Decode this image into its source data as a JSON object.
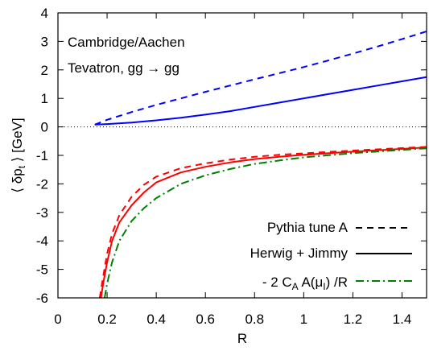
{
  "chart_data": {
    "type": "line",
    "xlabel": "R",
    "ylabel": "⟨ δp",
    "ylabel_sub": "t",
    "ylabel_tail": " ⟩ [GeV]",
    "xlim": [
      0,
      1.5
    ],
    "ylim": [
      -6,
      4
    ],
    "xticks": [
      "0",
      "0.2",
      "0.4",
      "0.6",
      "0.8",
      "1",
      "1.2",
      "1.4"
    ],
    "yticks": [
      "4",
      "3",
      "2",
      "1",
      "0",
      "-1",
      "-2",
      "-3",
      "-4",
      "-5",
      "-6"
    ],
    "annotations": [
      "Cambridge/Aachen",
      "Tevatron, gg → gg"
    ],
    "legend": {
      "position": "bottom-right",
      "entries": [
        {
          "text": "Pythia tune A",
          "style": "dashed",
          "color": "#000000"
        },
        {
          "text": "Herwig + Jimmy",
          "style": "solid",
          "color": "#000000"
        },
        {
          "text_pre": "- 2 C",
          "sub1": "A",
          "text_mid": " A(μ",
          "sub2": "I",
          "text_post": ") /R",
          "style": "dashdot",
          "color": "#008000"
        }
      ]
    },
    "zero_line": true,
    "series": [
      {
        "id": "pythia-upper",
        "color": "#0000ff",
        "style": "dashed",
        "x": [
          0.15,
          0.2,
          0.3,
          0.4,
          0.5,
          0.6,
          0.7,
          0.8,
          0.9,
          1.0,
          1.1,
          1.2,
          1.3,
          1.4,
          1.5
        ],
        "y": [
          0.08,
          0.25,
          0.52,
          0.77,
          1.0,
          1.23,
          1.45,
          1.67,
          1.88,
          2.1,
          2.33,
          2.57,
          2.82,
          3.08,
          3.35
        ]
      },
      {
        "id": "herwig-upper",
        "color": "#0000ff",
        "style": "solid",
        "x": [
          0.15,
          0.2,
          0.3,
          0.4,
          0.5,
          0.6,
          0.7,
          0.8,
          0.9,
          1.0,
          1.1,
          1.2,
          1.3,
          1.4,
          1.5
        ],
        "y": [
          0.08,
          0.1,
          0.15,
          0.23,
          0.32,
          0.43,
          0.55,
          0.7,
          0.85,
          1.0,
          1.15,
          1.3,
          1.45,
          1.6,
          1.75
        ]
      },
      {
        "id": "pythia-lower",
        "color": "#ff0000",
        "style": "dashed",
        "x": [
          0.17,
          0.18,
          0.2,
          0.22,
          0.25,
          0.3,
          0.35,
          0.4,
          0.5,
          0.6,
          0.7,
          0.8,
          0.9,
          1.0,
          1.2,
          1.5
        ],
        "y": [
          -6.0,
          -5.45,
          -4.45,
          -3.75,
          -3.1,
          -2.45,
          -2.03,
          -1.75,
          -1.45,
          -1.28,
          -1.15,
          -1.05,
          -0.98,
          -0.93,
          -0.83,
          -0.7
        ]
      },
      {
        "id": "herwig-lower",
        "color": "#ff0000",
        "style": "solid",
        "x": [
          0.175,
          0.185,
          0.2,
          0.22,
          0.25,
          0.3,
          0.35,
          0.4,
          0.5,
          0.6,
          0.7,
          0.8,
          0.9,
          1.0,
          1.2,
          1.5
        ],
        "y": [
          -6.0,
          -5.45,
          -4.75,
          -4.0,
          -3.35,
          -2.75,
          -2.3,
          -1.95,
          -1.6,
          -1.4,
          -1.25,
          -1.13,
          -1.05,
          -0.98,
          -0.87,
          -0.72
        ]
      },
      {
        "id": "analytic",
        "color": "#008000",
        "style": "dashdot",
        "x": [
          0.19,
          0.2,
          0.22,
          0.25,
          0.3,
          0.35,
          0.4,
          0.5,
          0.6,
          0.7,
          0.8,
          0.9,
          1.0,
          1.2,
          1.5
        ],
        "y": [
          -6.0,
          -5.5,
          -4.75,
          -4.0,
          -3.3,
          -2.85,
          -2.5,
          -2.0,
          -1.7,
          -1.48,
          -1.3,
          -1.18,
          -1.07,
          -0.92,
          -0.75
        ]
      }
    ]
  }
}
